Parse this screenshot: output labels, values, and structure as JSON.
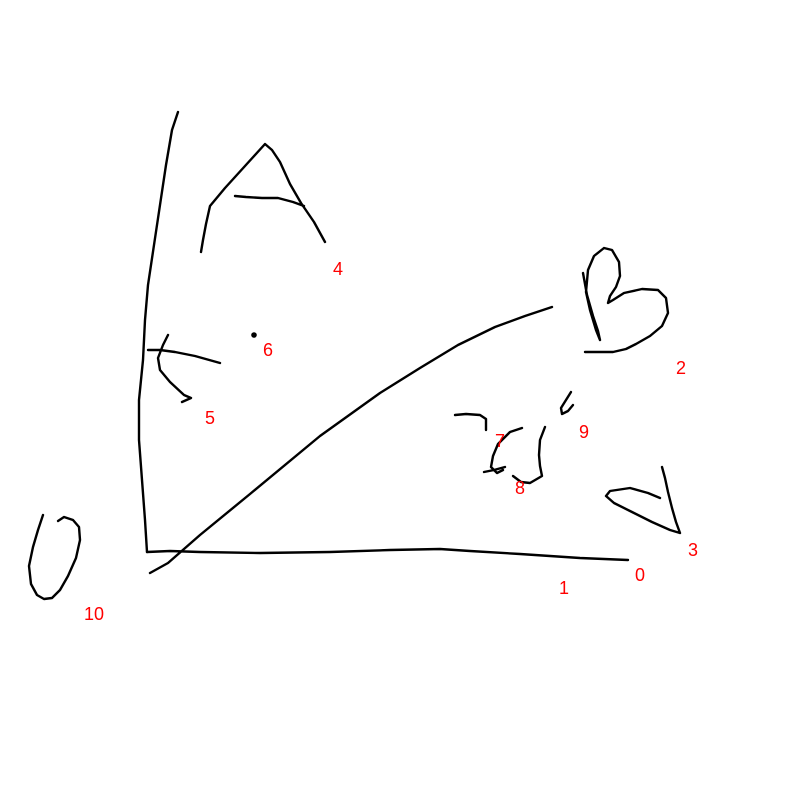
{
  "style": {
    "background": "#ffffff",
    "ink_color": "#000000",
    "label_color": "#ff0000"
  },
  "labels": {
    "l0": "0",
    "l1": "1",
    "l2": "2",
    "l3": "3",
    "l4": "4",
    "l5": "5",
    "l6": "6",
    "l7": "7",
    "l8": "8",
    "l9": "9",
    "l10": "10"
  }
}
